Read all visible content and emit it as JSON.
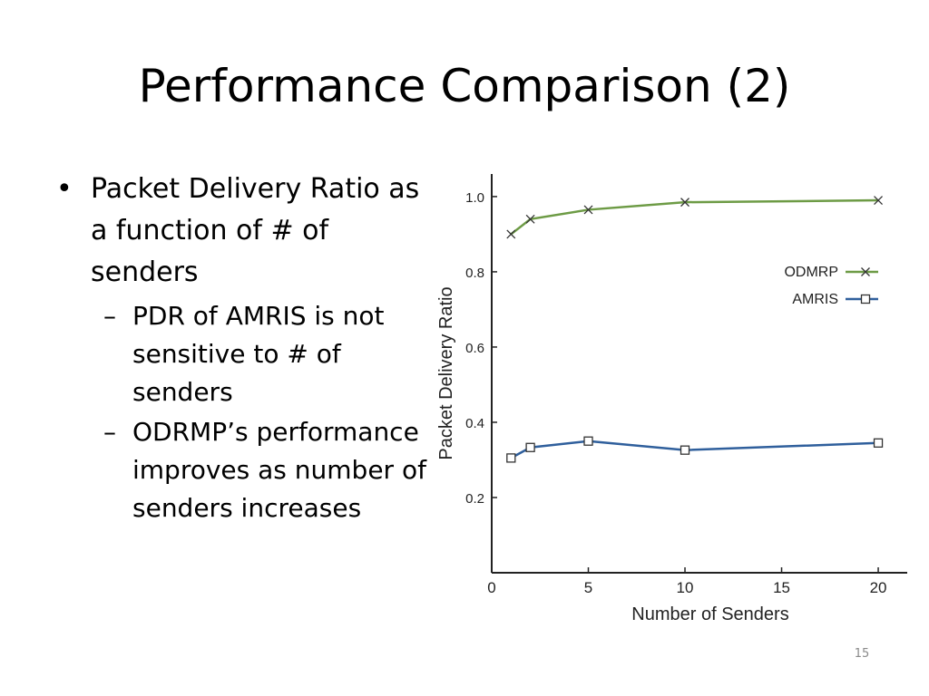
{
  "slide": {
    "title": "Performance Comparison (2)",
    "page_number": "15"
  },
  "bullets": {
    "b1_mark": "•",
    "b1": "Packet Delivery Ratio as a function of # of senders",
    "sub_mark": "–",
    "s1": "PDR of AMRIS is not sensitive to # of senders",
    "s2": "ODRMP’s performance improves as number of senders increases"
  },
  "chart_data": {
    "type": "line",
    "xlabel": "Number of Senders",
    "ylabel": "Packet Delivery Ratio",
    "x_ticks": [
      0,
      5,
      10,
      15,
      20
    ],
    "y_ticks": [
      0.2,
      0.4,
      0.6,
      0.8,
      1.0
    ],
    "xlim": [
      0,
      21.5
    ],
    "ylim": [
      0,
      1.06
    ],
    "grid": false,
    "legend_position": "right",
    "series": [
      {
        "name": "ODMRP",
        "marker": "x",
        "color": "#6d9b45",
        "x": [
          1,
          2,
          5,
          10,
          20
        ],
        "y": [
          0.9,
          0.94,
          0.965,
          0.985,
          0.99
        ]
      },
      {
        "name": "AMRIS",
        "marker": "square",
        "color": "#2f5f9c",
        "x": [
          1,
          2,
          5,
          10,
          20
        ],
        "y": [
          0.305,
          0.333,
          0.35,
          0.326,
          0.345
        ]
      }
    ]
  }
}
